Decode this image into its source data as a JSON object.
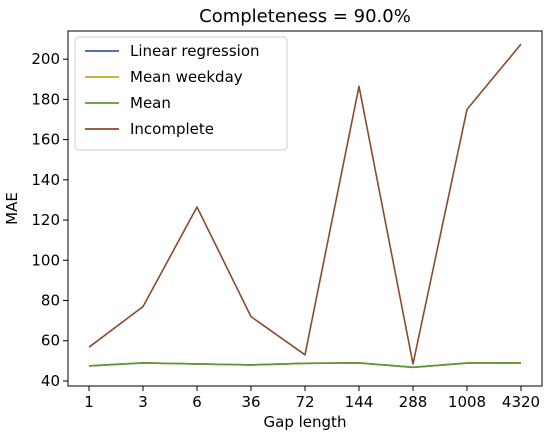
{
  "chart_data": {
    "type": "line",
    "title": "Completeness = 90.0%",
    "xlabel": "Gap length",
    "ylabel": "MAE",
    "categories": [
      "1",
      "3",
      "6",
      "36",
      "72",
      "144",
      "288",
      "1008",
      "4320"
    ],
    "ylim": [
      37.5,
      214
    ],
    "yticks": [
      40,
      60,
      80,
      100,
      120,
      140,
      160,
      180,
      200
    ],
    "grid": false,
    "legend_position": "top-left",
    "series": [
      {
        "name": "Linear regression",
        "color": "#3b5ba5",
        "values": [
          47.5,
          49.0,
          48.5,
          48.0,
          48.8,
          49.0,
          46.8,
          48.9,
          49.0
        ]
      },
      {
        "name": "Mean weekday",
        "color": "#c9a227",
        "values": [
          47.5,
          49.0,
          48.5,
          48.0,
          48.8,
          49.0,
          46.8,
          48.9,
          49.0
        ]
      },
      {
        "name": "Mean",
        "color": "#5a9a32",
        "values": [
          47.5,
          49.0,
          48.5,
          48.0,
          48.8,
          49.0,
          46.8,
          48.9,
          49.0
        ]
      },
      {
        "name": "Incomplete",
        "color": "#8b4a2b",
        "values": [
          56.8,
          77.0,
          126.5,
          72.0,
          53.0,
          186.5,
          48.5,
          175.0,
          207.5
        ]
      }
    ]
  }
}
